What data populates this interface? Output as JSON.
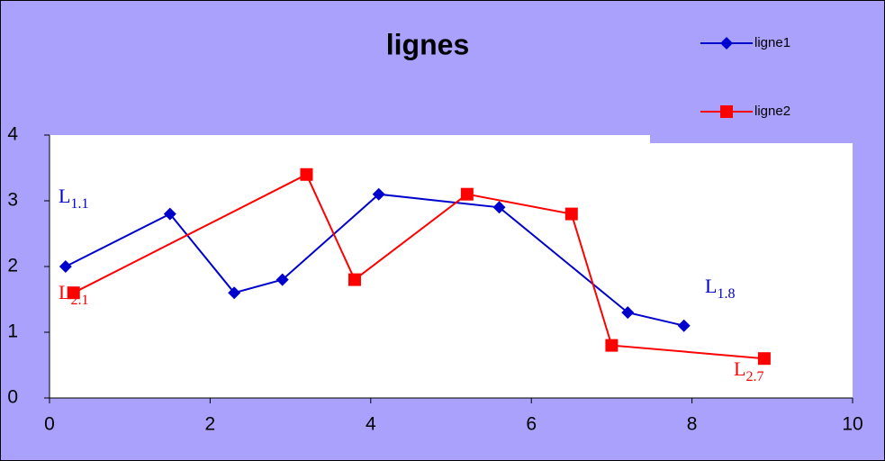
{
  "chart_data": {
    "type": "scatter_line",
    "title": "lignes",
    "xlim": [
      0,
      10
    ],
    "xticks": [
      0,
      2,
      4,
      6,
      8,
      10
    ],
    "ylim": [
      0,
      4
    ],
    "yticks": [
      0,
      1,
      2,
      3,
      4
    ],
    "grid": false,
    "legend": "top-right",
    "series": [
      {
        "name": "ligne1",
        "color": "#0000cc",
        "marker": "diamond",
        "x": [
          0.2,
          1.5,
          2.3,
          2.9,
          4.1,
          5.6,
          7.2,
          7.9
        ],
        "values": [
          2.0,
          2.8,
          1.6,
          1.8,
          3.1,
          2.9,
          1.3,
          1.1
        ]
      },
      {
        "name": "ligne2",
        "color": "#ff0000",
        "marker": "square",
        "x": [
          0.3,
          3.2,
          3.8,
          5.2,
          6.5,
          7.0,
          8.9
        ],
        "values": [
          1.6,
          3.4,
          1.8,
          3.1,
          2.8,
          0.8,
          0.6
        ]
      }
    ],
    "annotations": [
      {
        "text": "L",
        "sub": "1.1",
        "color": "#0000cc"
      },
      {
        "text": "L",
        "sub": "2.1",
        "color": "#ff0000"
      },
      {
        "text": "L",
        "sub": "1.8",
        "color": "#0000cc"
      },
      {
        "text": "L",
        "sub": "2.7",
        "color": "#ff0000"
      }
    ]
  }
}
